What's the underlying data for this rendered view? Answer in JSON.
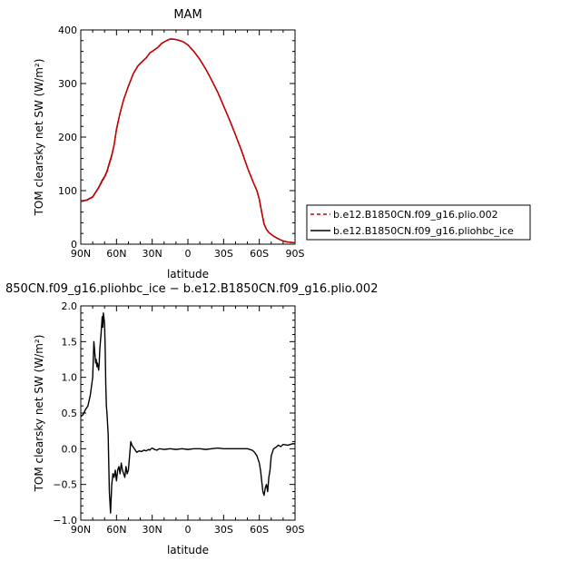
{
  "chart_data": [
    {
      "type": "line",
      "title": "MAM",
      "xlabel": "latitude",
      "ylabel": "TOM clearsky net SW (W/m²)",
      "xlim": [
        90,
        -90
      ],
      "ylim": [
        0,
        400
      ],
      "x_ticks": [
        90,
        60,
        30,
        0,
        -30,
        -60,
        -90
      ],
      "x_tick_labels": [
        "90N",
        "60N",
        "30N",
        "0",
        "30S",
        "60S",
        "90S"
      ],
      "y_ticks": [
        0,
        100,
        200,
        300,
        400
      ],
      "y_tick_labels": [
        "0",
        "100",
        "200",
        "300",
        "400"
      ],
      "legend": {
        "placement": "right",
        "entries": [
          {
            "label": "b.e12.B1850CN.f09_g16.plio.002",
            "color": "#cc0000",
            "dash": "dashed"
          },
          {
            "label": "b.e12.B1850CN.f09_g16.pliohbc_ice",
            "color": "#000000",
            "dash": "solid"
          }
        ]
      },
      "series": [
        {
          "name": "b.e12.B1850CN.f09_g16.plio.002",
          "color": "#cc0000",
          "x": [
            90,
            85,
            80,
            75,
            72,
            70,
            68,
            66,
            64,
            62,
            60,
            57,
            54,
            50,
            46,
            42,
            38,
            35,
            32,
            28,
            25,
            22,
            18,
            15,
            12,
            8,
            4,
            0,
            -5,
            -10,
            -15,
            -20,
            -25,
            -30,
            -35,
            -40,
            -45,
            -50,
            -55,
            -58,
            -60,
            -62,
            -64,
            -66,
            -68,
            -72,
            -76,
            -80,
            -84,
            -88,
            -90
          ],
          "y": [
            80,
            82,
            88,
            105,
            118,
            125,
            135,
            150,
            165,
            185,
            215,
            245,
            270,
            295,
            318,
            333,
            342,
            348,
            357,
            363,
            368,
            375,
            380,
            383,
            383,
            381,
            378,
            372,
            360,
            345,
            327,
            306,
            284,
            258,
            232,
            204,
            175,
            143,
            115,
            100,
            84,
            60,
            38,
            28,
            22,
            15,
            10,
            6,
            4,
            3,
            3
          ]
        },
        {
          "name": "b.e12.B1850CN.f09_g16.pliohbc_ice",
          "color": "#000000",
          "x": [
            90,
            85,
            80,
            75,
            72,
            70,
            68,
            66,
            64,
            62,
            60,
            57,
            54,
            50,
            46,
            42,
            38,
            35,
            32,
            28,
            25,
            22,
            18,
            15,
            12,
            8,
            4,
            0,
            -5,
            -10,
            -15,
            -20,
            -25,
            -30,
            -35,
            -40,
            -45,
            -50,
            -55,
            -58,
            -60,
            -62,
            -64,
            -66,
            -68,
            -72,
            -76,
            -80,
            -84,
            -88,
            -90
          ],
          "y": [
            80.5,
            82.5,
            88.5,
            106,
            119.5,
            126,
            136.5,
            151.5,
            166.5,
            185.5,
            214.5,
            244.7,
            269.7,
            294.8,
            317.8,
            332.9,
            342,
            348,
            357,
            363,
            368,
            375,
            380,
            383,
            383,
            381,
            378,
            372,
            360,
            345,
            327,
            306,
            284,
            258,
            232,
            204,
            175,
            143,
            115,
            99.8,
            83.6,
            59.3,
            37.5,
            27.6,
            21.7,
            15,
            10,
            6,
            4,
            3,
            3
          ]
        }
      ]
    },
    {
      "type": "line",
      "title": "850CN.f09_g16.pliohbc_ice − b.e12.B1850CN.f09_g16.plio.002",
      "xlabel": "latitude",
      "ylabel": "TOM clearsky net SW (W/m²)",
      "xlim": [
        90,
        -90
      ],
      "ylim": [
        -1.0,
        2.0
      ],
      "x_ticks": [
        90,
        60,
        30,
        0,
        -30,
        -60,
        -90
      ],
      "x_tick_labels": [
        "90N",
        "60N",
        "30N",
        "0",
        "30S",
        "60S",
        "90S"
      ],
      "y_ticks": [
        -1.0,
        -0.5,
        0.0,
        0.5,
        1.0,
        1.5,
        2.0
      ],
      "y_tick_labels": [
        "−1.0",
        "−0.5",
        "0.0",
        "0.5",
        "1.0",
        "1.5",
        "2.0"
      ],
      "series": [
        {
          "color": "#000000",
          "x": [
            90,
            88,
            86,
            84,
            82,
            80,
            79,
            78,
            77.5,
            77,
            76.5,
            76,
            75,
            74.5,
            74,
            73,
            72,
            71.5,
            71,
            70,
            69.5,
            69,
            68.5,
            68,
            67,
            66.5,
            66,
            65,
            64,
            63,
            62,
            61,
            60,
            59,
            58,
            57,
            56,
            55,
            54,
            53,
            52,
            51,
            50,
            49,
            48,
            47,
            45,
            43,
            41,
            39,
            37,
            35,
            34,
            33,
            32,
            31,
            30,
            28,
            26,
            24,
            20,
            15,
            10,
            5,
            0,
            -5,
            -10,
            -15,
            -20,
            -25,
            -30,
            -35,
            -40,
            -45,
            -50,
            -54,
            -56,
            -58,
            -60,
            -61,
            -62,
            -63,
            -64,
            -65,
            -66,
            -67,
            -68,
            -69,
            -70,
            -72,
            -74,
            -76,
            -78,
            -80,
            -84,
            -88,
            -90
          ],
          "y": [
            0.45,
            0.48,
            0.55,
            0.6,
            0.75,
            1.0,
            1.5,
            1.3,
            1.2,
            1.25,
            1.15,
            1.2,
            1.1,
            1.2,
            1.4,
            1.6,
            1.85,
            1.7,
            1.9,
            1.75,
            1.4,
            0.9,
            0.6,
            0.5,
            0.2,
            -0.2,
            -0.6,
            -0.9,
            -0.5,
            -0.35,
            -0.4,
            -0.3,
            -0.45,
            -0.3,
            -0.25,
            -0.35,
            -0.2,
            -0.3,
            -0.35,
            -0.4,
            -0.25,
            -0.35,
            -0.3,
            -0.1,
            0.1,
            0.05,
            0.0,
            -0.05,
            -0.03,
            -0.04,
            -0.02,
            -0.03,
            -0.02,
            -0.01,
            -0.02,
            0.0,
            0.01,
            -0.01,
            -0.02,
            0.0,
            -0.01,
            0.0,
            -0.01,
            0.0,
            -0.01,
            0.0,
            0.0,
            -0.01,
            0.0,
            0.01,
            0.0,
            0.0,
            0.0,
            0.0,
            0.0,
            -0.02,
            -0.05,
            -0.1,
            -0.2,
            -0.3,
            -0.45,
            -0.6,
            -0.65,
            -0.55,
            -0.5,
            -0.6,
            -0.4,
            -0.3,
            -0.1,
            0.0,
            0.02,
            0.05,
            0.03,
            0.06,
            0.05,
            0.07,
            0.07
          ]
        }
      ]
    }
  ]
}
